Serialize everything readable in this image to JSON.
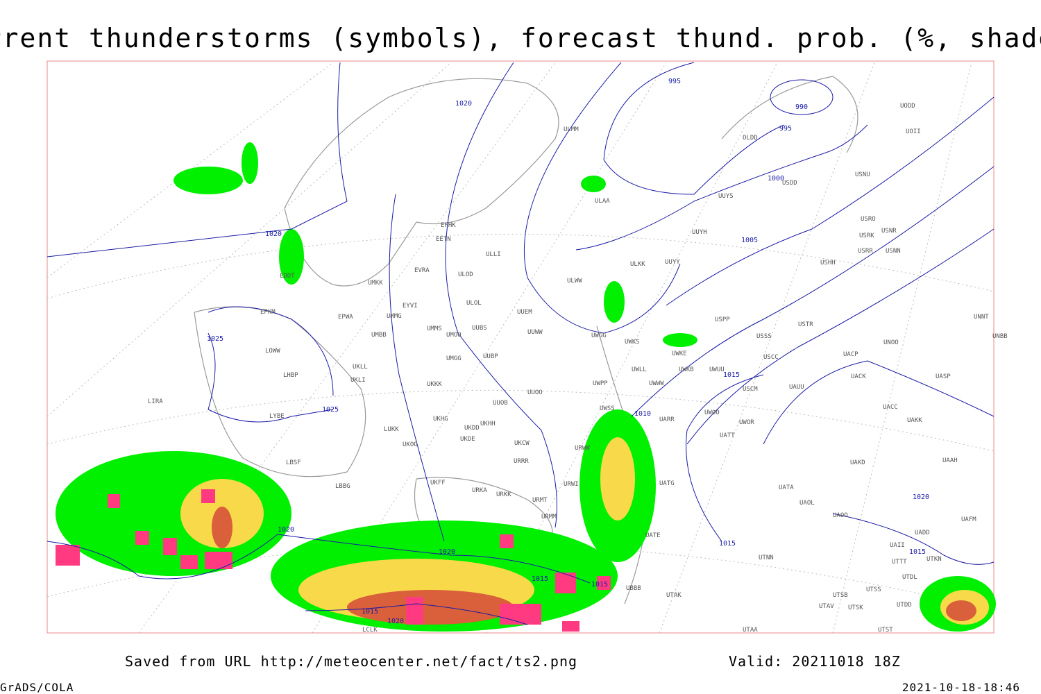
{
  "title": "Current thunderstorms (symbols), forecast thund. prob. (%, shaded)",
  "footer": {
    "source": "Saved from URL  http://meteocenter.net/fact/ts2.png",
    "valid": "Valid: 20211018 18Z",
    "software": "GrADS/COLA",
    "timestamp": "2021-10-18-18:46"
  },
  "isobar_labels": [
    "995",
    "990",
    "995",
    "1000",
    "1005",
    "1010",
    "1015",
    "1020",
    "1020",
    "1025",
    "1025",
    "1015",
    "1015",
    "1015",
    "1020",
    "1020",
    "1015",
    "1015",
    "1020",
    "1020"
  ],
  "stations": [
    "EFHK",
    "EETN",
    "ULLI",
    "EVRA",
    "ULOD",
    "EDDT",
    "UMKK",
    "EYVI",
    "ULOL",
    "UUEM",
    "EPKM",
    "EPWA",
    "UMMG",
    "UMMS",
    "UMOO",
    "UUBS",
    "UUWW",
    "UWGG",
    "UWKS",
    "UMBB",
    "LOWW",
    "UUBP",
    "UMGG",
    "UKLL",
    "UKLI",
    "LHBP",
    "UKKK",
    "UUOO",
    "UUOB",
    "LIRA",
    "LYBE",
    "UKHH",
    "UKDD",
    "UKHG",
    "UKDE",
    "LUKK",
    "UKOO",
    "UKCW",
    "URRR",
    "LBSF",
    "UKFF",
    "URKA",
    "URKK",
    "LBBG",
    "URMT",
    "URWI",
    "URMM",
    "UWLL",
    "UWWW",
    "UWUU",
    "UWKE",
    "UWKB",
    "UWSS",
    "UWPP",
    "URWW",
    "UATG",
    "UATE",
    "UBBB",
    "UTAK",
    "UTAA",
    "USPP",
    "USSS",
    "USTR",
    "USCC",
    "USCM",
    "UAUU",
    "UARR",
    "UWOO",
    "UWOR",
    "UATT",
    "UAKD",
    "UATA",
    "UAOL",
    "UAOO",
    "UAAH",
    "UAFM",
    "UADD",
    "UAII",
    "UTTT",
    "UTDL",
    "UTSS",
    "UTSB",
    "UTAV",
    "UTSK",
    "UTDD",
    "UTST",
    "UTNN",
    "UNNT",
    "UNBB",
    "UNOO",
    "UACP",
    "UACK",
    "UASP",
    "UACC",
    "UAKK",
    "USHH",
    "USRR",
    "USNN",
    "USRK",
    "USNR",
    "USRO",
    "USNU",
    "UUYS",
    "UUYH",
    "UUYY",
    "ULWW",
    "ULKK",
    "ULAA",
    "ULMM",
    "OLDD",
    "USDD",
    "UODD",
    "UOII",
    "LCLK",
    "UTKN"
  ]
}
